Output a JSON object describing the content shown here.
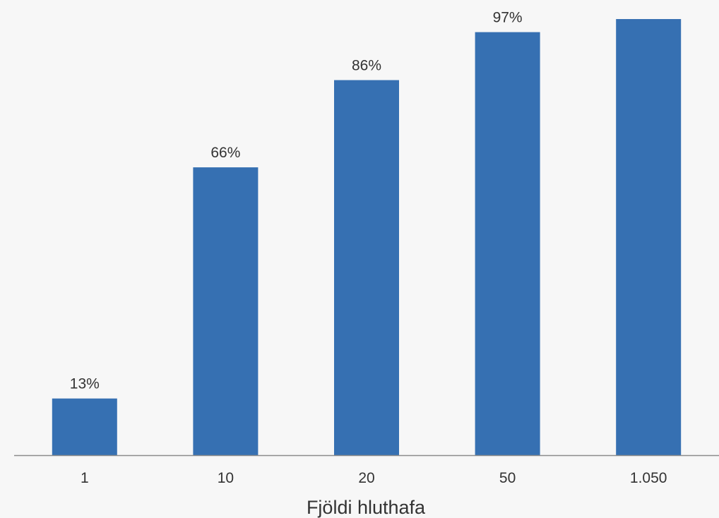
{
  "chart_data": {
    "type": "bar",
    "title": "",
    "xlabel": "Fjöldi hluthafa",
    "ylabel": "",
    "categories": [
      "1",
      "10",
      "20",
      "50",
      "1.050"
    ],
    "values": [
      13,
      66,
      86,
      97,
      100
    ],
    "data_labels": [
      "13%",
      "66%",
      "86%",
      "97%",
      ""
    ],
    "ylim": [
      0,
      100
    ],
    "grid": false,
    "legend": "none",
    "colors": {
      "bar": "#3670b2",
      "axis": "#8c8c8c",
      "text": "#333333",
      "background": "#f7f7f7"
    }
  }
}
